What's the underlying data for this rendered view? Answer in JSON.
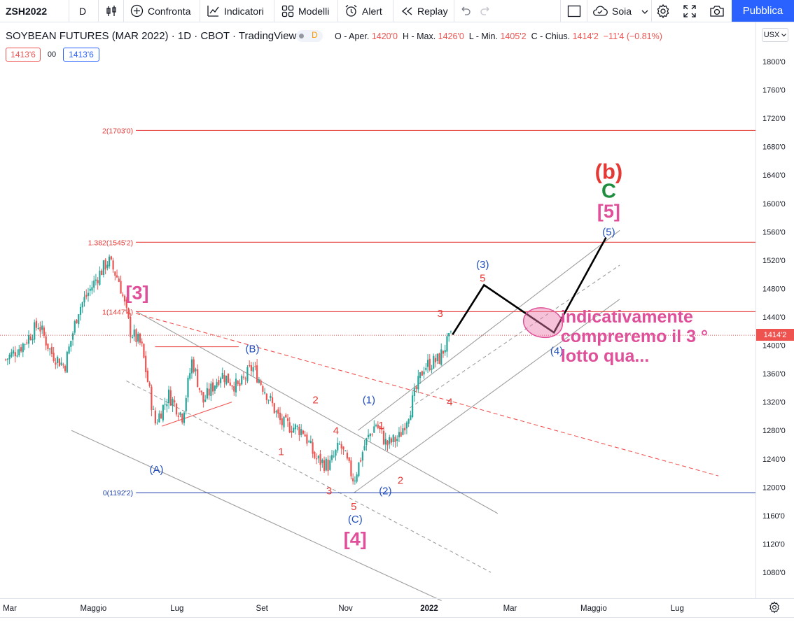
{
  "toolbar": {
    "symbol": "ZSH2022",
    "interval": "D",
    "compare_label": "Confronta",
    "indicators_label": "Indicatori",
    "templates_label": "Modelli",
    "alert_label": "Alert",
    "replay_label": "Replay",
    "layout_label": "Soia",
    "publish_label": "Pubblica"
  },
  "legend": {
    "title": "SOYBEAN FUTURES (MAR 2022) · 1D · CBOT · TradingView",
    "d_badge": "D",
    "open_label": "O - Aper.",
    "open_value": "1420'0",
    "high_label": "H - Max.",
    "high_value": "1426'0",
    "low_label": "L - Min.",
    "low_value": "1405'2",
    "close_label": "C - Chius.",
    "close_value": "1414'2",
    "change_value": "−11'4 (−0.81%)",
    "sell_price": "1413'6",
    "spread": "00",
    "buy_price": "1413'6"
  },
  "colors": {
    "up": "#26a69a",
    "down": "#ef5350",
    "fib_red": "#e53935",
    "fib_blue": "#1e3fae",
    "wave_red": "#e53935",
    "wave_blue": "#1f4fbf",
    "wave_pink": "#e0509a",
    "wave_green": "#1e8e3e"
  },
  "axis": {
    "currency": "USX",
    "last_price": "1414'2",
    "y_ticks": [
      {
        "v": 1800,
        "label": "1800'0"
      },
      {
        "v": 1760,
        "label": "1760'0"
      },
      {
        "v": 1720,
        "label": "1720'0"
      },
      {
        "v": 1680,
        "label": "1680'0"
      },
      {
        "v": 1640,
        "label": "1640'0"
      },
      {
        "v": 1600,
        "label": "1600'0"
      },
      {
        "v": 1560,
        "label": "1560'0"
      },
      {
        "v": 1520,
        "label": "1520'0"
      },
      {
        "v": 1480,
        "label": "1480'0"
      },
      {
        "v": 1440,
        "label": "1440'0"
      },
      {
        "v": 1400,
        "label": "1400'0"
      },
      {
        "v": 1360,
        "label": "1360'0"
      },
      {
        "v": 1320,
        "label": "1320'0"
      },
      {
        "v": 1280,
        "label": "1280'0"
      },
      {
        "v": 1240,
        "label": "1240'0"
      },
      {
        "v": 1200,
        "label": "1200'0"
      },
      {
        "v": 1160,
        "label": "1160'0"
      },
      {
        "v": 1120,
        "label": "1120'0"
      },
      {
        "v": 1080,
        "label": "1080'0"
      }
    ],
    "x_ticks": [
      {
        "t": "2021-03-01",
        "label": "Mar"
      },
      {
        "t": "2021-05-01",
        "label": "Maggio"
      },
      {
        "t": "2021-07-01",
        "label": "Lug"
      },
      {
        "t": "2021-09-01",
        "label": "Set"
      },
      {
        "t": "2021-11-01",
        "label": "Nov"
      },
      {
        "t": "2022-01-01",
        "label": "2022"
      },
      {
        "t": "2022-03-01",
        "label": "Mar"
      },
      {
        "t": "2022-05-01",
        "label": "Maggio"
      },
      {
        "t": "2022-07-01",
        "label": "Lug"
      }
    ]
  },
  "chart_data": {
    "type": "candlestick",
    "y_range": [
      1040,
      1840
    ],
    "x_range": [
      "2021-03-01",
      "2022-08-01"
    ],
    "grid": false,
    "price_anchors": [
      {
        "t": "2021-02-26",
        "p": 1380
      },
      {
        "t": "2021-03-10",
        "p": 1400
      },
      {
        "t": "2021-03-22",
        "p": 1430
      },
      {
        "t": "2021-03-31",
        "p": 1390
      },
      {
        "t": "2021-04-10",
        "p": 1370
      },
      {
        "t": "2021-04-20",
        "p": 1450
      },
      {
        "t": "2021-05-05",
        "p": 1500
      },
      {
        "t": "2021-05-12",
        "p": 1520
      },
      {
        "t": "2021-05-20",
        "p": 1490
      },
      {
        "t": "2021-05-28",
        "p": 1420
      },
      {
        "t": "2021-06-05",
        "p": 1400
      },
      {
        "t": "2021-06-15",
        "p": 1290
      },
      {
        "t": "2021-06-25",
        "p": 1330
      },
      {
        "t": "2021-07-05",
        "p": 1300
      },
      {
        "t": "2021-07-12",
        "p": 1380
      },
      {
        "t": "2021-07-20",
        "p": 1320
      },
      {
        "t": "2021-08-02",
        "p": 1360
      },
      {
        "t": "2021-08-15",
        "p": 1340
      },
      {
        "t": "2021-08-25",
        "p": 1370
      },
      {
        "t": "2021-09-05",
        "p": 1330
      },
      {
        "t": "2021-09-15",
        "p": 1290
      },
      {
        "t": "2021-10-01",
        "p": 1280
      },
      {
        "t": "2021-10-10",
        "p": 1240
      },
      {
        "t": "2021-10-20",
        "p": 1230
      },
      {
        "t": "2021-10-28",
        "p": 1260
      },
      {
        "t": "2021-11-07",
        "p": 1210
      },
      {
        "t": "2021-11-15",
        "p": 1260
      },
      {
        "t": "2021-11-23",
        "p": 1290
      },
      {
        "t": "2021-12-01",
        "p": 1260
      },
      {
        "t": "2021-12-10",
        "p": 1270
      },
      {
        "t": "2021-12-18",
        "p": 1310
      },
      {
        "t": "2021-12-28",
        "p": 1370
      },
      {
        "t": "2022-01-08",
        "p": 1380
      },
      {
        "t": "2022-01-13",
        "p": 1400
      },
      {
        "t": "2022-01-18",
        "p": 1414
      }
    ],
    "levels": [
      {
        "name": "fib-level-2",
        "label": "2(1703'0)",
        "value": 1703,
        "color": "#e53935",
        "from": "2021-06-01"
      },
      {
        "name": "fib-level-1382",
        "label": "1.382(1545'2)",
        "value": 1545.25,
        "color": "#e53935",
        "from": "2021-06-01"
      },
      {
        "name": "fib-level-1",
        "label": "1(1447'4)",
        "value": 1447.5,
        "color": "#e53935",
        "from": "2021-06-01"
      },
      {
        "name": "fib-level-0",
        "label": "0(1192'2)",
        "value": 1192.25,
        "color": "#1e3fae",
        "from": "2021-06-01"
      },
      {
        "name": "last-price-line",
        "label": "",
        "value": 1414.25,
        "color": "#ef5350",
        "from": "2021-02-01",
        "dotted": true
      }
    ],
    "trendlines": [
      {
        "name": "upper-channel-line",
        "from": [
          "2021-06-01",
          1448
        ],
        "to": [
          "2022-02-20",
          1163
        ],
        "color": "#9e9e9e",
        "dash": false
      },
      {
        "name": "lower-channel-line",
        "from": [
          "2021-04-15",
          1280
        ],
        "to": [
          "2022-01-10",
          1040
        ],
        "color": "#9e9e9e",
        "dash": false
      },
      {
        "name": "middle-channel-line",
        "from": [
          "2021-05-25",
          1350
        ],
        "to": [
          "2022-02-15",
          1080
        ],
        "color": "#9e9e9e",
        "dash": true
      },
      {
        "name": "red-dashed-trendline",
        "from": [
          "2021-06-01",
          1445
        ],
        "to": [
          "2022-07-31",
          1216
        ],
        "color": "#ef5350",
        "dash": true
      },
      {
        "name": "triangle-top-line",
        "from": [
          "2021-06-15",
          1398
        ],
        "to": [
          "2021-08-15",
          1398
        ],
        "color": "#ef5350",
        "dash": false
      },
      {
        "name": "triangle-bottom-line",
        "from": [
          "2021-06-20",
          1286
        ],
        "to": [
          "2021-08-10",
          1320
        ],
        "color": "#ef5350",
        "dash": false
      },
      {
        "name": "up-channel-upper",
        "from": [
          "2021-11-10",
          1280
        ],
        "to": [
          "2022-05-20",
          1562
        ],
        "color": "#9e9e9e",
        "dash": false
      },
      {
        "name": "up-channel-lower",
        "from": [
          "2021-11-07",
          1192
        ],
        "to": [
          "2022-05-20",
          1465
        ],
        "color": "#9e9e9e",
        "dash": false
      },
      {
        "name": "up-channel-middle",
        "from": [
          "2021-12-18",
          1312
        ],
        "to": [
          "2022-05-20",
          1513
        ],
        "color": "#9e9e9e",
        "dash": true
      }
    ],
    "projection_path": [
      [
        "2022-01-18",
        1415
      ],
      [
        "2022-02-10",
        1485
      ],
      [
        "2022-04-02",
        1418
      ],
      [
        "2022-05-10",
        1552
      ]
    ],
    "projection_zone": {
      "t": "2022-03-25",
      "p": 1432
    },
    "labels": [
      {
        "name": "wave-label-3-bracket",
        "text": "[3]",
        "t": "2021-06-02",
        "p": 1465,
        "color": "#e0509a",
        "size": 27
      },
      {
        "name": "wave-label-a",
        "text": "(A)",
        "t": "2021-06-16",
        "p": 1220,
        "color": "#1f4fbf",
        "size": 15
      },
      {
        "name": "wave-label-b",
        "text": "(B)",
        "t": "2021-08-25",
        "p": 1390,
        "color": "#1f4fbf",
        "size": 15
      },
      {
        "name": "wave-label-1-sub",
        "text": "1",
        "t": "2021-09-15",
        "p": 1245,
        "color": "#e53935",
        "size": 15
      },
      {
        "name": "wave-label-2-sub",
        "text": "2",
        "t": "2021-10-10",
        "p": 1318,
        "color": "#e53935",
        "size": 15
      },
      {
        "name": "wave-label-4-sub",
        "text": "4",
        "t": "2021-10-25",
        "p": 1275,
        "color": "#e53935",
        "size": 15
      },
      {
        "name": "wave-label-3-sub",
        "text": "3",
        "t": "2021-10-20",
        "p": 1190,
        "color": "#e53935",
        "size": 15
      },
      {
        "name": "wave-label-5-sub",
        "text": "5",
        "t": "2021-11-07",
        "p": 1168,
        "color": "#e53935",
        "size": 15
      },
      {
        "name": "wave-label-c",
        "text": "(C)",
        "t": "2021-11-08",
        "p": 1150,
        "color": "#1f4fbf",
        "size": 15
      },
      {
        "name": "wave-label-4-bracket",
        "text": "[4]",
        "t": "2021-11-08",
        "p": 1118,
        "color": "#e0509a",
        "size": 27
      },
      {
        "name": "wave-label-1-paren",
        "text": "(1)",
        "t": "2021-11-18",
        "p": 1318,
        "color": "#1f4fbf",
        "size": 15
      },
      {
        "name": "wave-label-1-red",
        "text": "1",
        "t": "2021-11-27",
        "p": 1282,
        "color": "#e53935",
        "size": 15
      },
      {
        "name": "wave-label-2-red",
        "text": "2",
        "t": "2021-12-11",
        "p": 1205,
        "color": "#e53935",
        "size": 15
      },
      {
        "name": "wave-label-2-paren",
        "text": "(2)",
        "t": "2021-11-30",
        "p": 1190,
        "color": "#1f4fbf",
        "size": 15
      },
      {
        "name": "wave-label-3-red",
        "text": "3",
        "t": "2022-01-09",
        "p": 1440,
        "color": "#e53935",
        "size": 15
      },
      {
        "name": "wave-label-4-red",
        "text": "4",
        "t": "2022-01-16",
        "p": 1315,
        "color": "#e53935",
        "size": 15
      },
      {
        "name": "wave-label-3-paren",
        "text": "(3)",
        "t": "2022-02-09",
        "p": 1509,
        "color": "#1f4fbf",
        "size": 15
      },
      {
        "name": "wave-label-5-red",
        "text": "5",
        "t": "2022-02-09",
        "p": 1490,
        "color": "#e53935",
        "size": 15
      },
      {
        "name": "wave-label-4-paren",
        "text": "(4)",
        "t": "2022-04-04",
        "p": 1387,
        "color": "#1f4fbf",
        "size": 15
      },
      {
        "name": "wave-label-5-paren",
        "text": "(5)",
        "t": "2022-05-12",
        "p": 1555,
        "color": "#1f4fbf",
        "size": 15
      },
      {
        "name": "wave-label-5-bracket",
        "text": "[5]",
        "t": "2022-05-12",
        "p": 1580,
        "color": "#e0509a",
        "size": 27
      },
      {
        "name": "wave-label-c-green",
        "text": "C",
        "t": "2022-05-12",
        "p": 1608,
        "color": "#1e8e3e",
        "size": 29
      },
      {
        "name": "wave-label-b-red",
        "text": "(b)",
        "t": "2022-05-12",
        "p": 1635,
        "color": "#e53935",
        "size": 31
      }
    ],
    "annotation": {
      "lines": [
        "indicativamente",
        "compreremo il 3 °",
        "lotto qua..."
      ],
      "t": "2022-04-07",
      "p": 1432,
      "color": "#e0509a",
      "size": 25
    }
  }
}
